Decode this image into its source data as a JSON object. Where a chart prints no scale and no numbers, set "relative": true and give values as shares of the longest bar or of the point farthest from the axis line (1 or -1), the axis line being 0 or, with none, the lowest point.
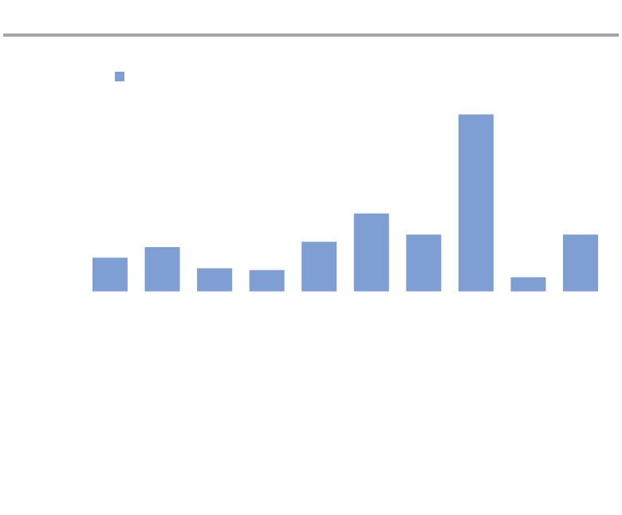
{
  "chart_data": {
    "type": "bar",
    "relative": true,
    "categories": [
      null,
      null,
      null,
      null,
      null,
      null,
      null,
      null,
      null,
      null
    ],
    "values": [
      0.19,
      0.25,
      0.13,
      0.12,
      0.28,
      0.44,
      0.32,
      1,
      0.08,
      0.32
    ],
    "color": "#7f9ed3"
  }
}
